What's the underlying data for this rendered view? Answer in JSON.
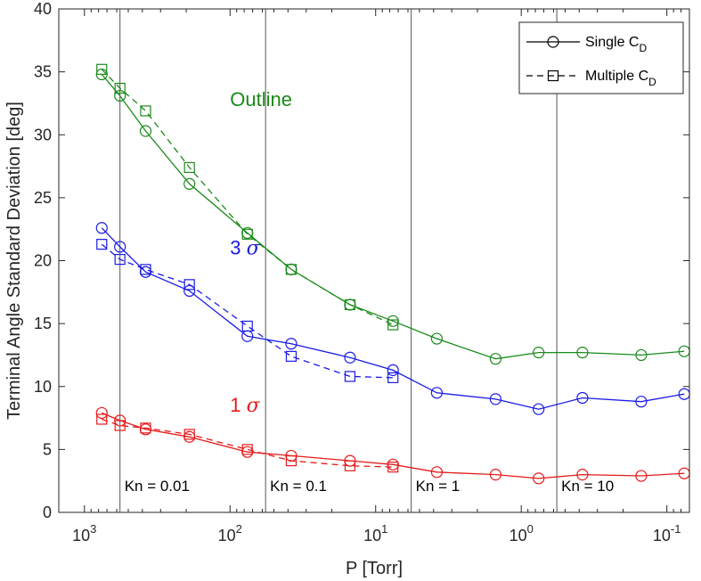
{
  "chart_data": {
    "type": "line",
    "xscale": "log",
    "xdir": "reversed",
    "xlim": [
      1500,
      0.07
    ],
    "ylim": [
      0,
      40
    ],
    "xlabel": "P [Torr]",
    "ylabel": "Terminal Angle Standard Deviation [deg]",
    "x_ticks": [
      {
        "value": 1000,
        "base": "10",
        "exp": "3"
      },
      {
        "value": 100,
        "base": "10",
        "exp": "2"
      },
      {
        "value": 10,
        "base": "10",
        "exp": "1"
      },
      {
        "value": 1,
        "base": "10",
        "exp": "0"
      },
      {
        "value": 0.1,
        "base": "10",
        "exp": "-1"
      }
    ],
    "y_ticks": [
      0,
      5,
      10,
      15,
      20,
      25,
      30,
      35,
      40
    ],
    "knudsen_lines": [
      {
        "x": 570,
        "label": "Kn = 0.01"
      },
      {
        "x": 57,
        "label": "Kn = 0.1"
      },
      {
        "x": 5.7,
        "label": "Kn = 1"
      },
      {
        "x": 0.57,
        "label": "Kn = 10"
      }
    ],
    "legend": {
      "placement": "top-right",
      "entries": [
        {
          "base": "Single C",
          "sub": "D",
          "style": "solid",
          "marker": "circle"
        },
        {
          "base": "Multiple C",
          "sub": "D",
          "style": "dashed",
          "marker": "square"
        }
      ]
    },
    "annotations": [
      {
        "id": "outline",
        "text": "Outline",
        "x": 100,
        "y": 32.3,
        "color": "#1a8a1a"
      },
      {
        "id": "three-sigma",
        "text": "3 σ",
        "x": 100,
        "y": 20.5,
        "color": "#1a1ae6"
      },
      {
        "id": "one-sigma",
        "text": "1 σ",
        "x": 100,
        "y": 8.0,
        "color": "#e61a1a"
      }
    ],
    "series": [
      {
        "name": "Outline, Single CD",
        "group": "Outline",
        "style": "solid",
        "marker": "circle",
        "color": "#1a8a1a",
        "x": [
          760,
          570,
          380,
          190,
          76,
          38,
          15,
          7.6,
          3.8,
          1.5,
          0.76,
          0.38,
          0.15,
          0.076
        ],
        "y": [
          34.8,
          33.1,
          30.3,
          26.1,
          22.2,
          19.3,
          16.5,
          15.2,
          13.8,
          12.2,
          12.7,
          12.7,
          12.5,
          12.8
        ]
      },
      {
        "name": "Outline, Multiple CD",
        "group": "Outline",
        "style": "dashed",
        "marker": "square",
        "color": "#1a8a1a",
        "x": [
          760,
          570,
          380,
          190,
          76,
          38,
          15,
          7.6
        ],
        "y": [
          35.2,
          33.7,
          31.9,
          27.4,
          22.1,
          19.3,
          16.5,
          14.9
        ]
      },
      {
        "name": "3 sigma, Single CD",
        "group": "3 sigma",
        "style": "solid",
        "marker": "circle",
        "color": "#1a1ae6",
        "x": [
          760,
          570,
          380,
          190,
          76,
          38,
          15,
          7.6,
          3.8,
          1.5,
          0.76,
          0.38,
          0.15,
          0.076
        ],
        "y": [
          22.6,
          21.1,
          19.1,
          17.6,
          14.0,
          13.4,
          12.3,
          11.3,
          9.5,
          9.0,
          8.2,
          9.1,
          8.8,
          9.4
        ]
      },
      {
        "name": "3 sigma, Multiple CD",
        "group": "3 sigma",
        "style": "dashed",
        "marker": "square",
        "color": "#1a1ae6",
        "x": [
          760,
          570,
          380,
          190,
          76,
          38,
          15,
          7.6
        ],
        "y": [
          21.3,
          20.1,
          19.3,
          18.1,
          14.8,
          12.4,
          10.8,
          10.7
        ]
      },
      {
        "name": "1 sigma, Single CD",
        "group": "1 sigma",
        "style": "solid",
        "marker": "circle",
        "color": "#e61a1a",
        "x": [
          760,
          570,
          380,
          190,
          76,
          38,
          15,
          7.6,
          3.8,
          1.5,
          0.76,
          0.38,
          0.15,
          0.076
        ],
        "y": [
          7.9,
          7.3,
          6.6,
          6.0,
          4.8,
          4.5,
          4.1,
          3.8,
          3.2,
          3.0,
          2.7,
          3.0,
          2.9,
          3.1
        ]
      },
      {
        "name": "1 sigma, Multiple CD",
        "group": "1 sigma",
        "style": "dashed",
        "marker": "square",
        "color": "#e61a1a",
        "x": [
          760,
          570,
          380,
          190,
          76,
          38,
          15,
          7.6
        ],
        "y": [
          7.4,
          6.9,
          6.7,
          6.2,
          5.0,
          4.1,
          3.7,
          3.6
        ]
      }
    ]
  }
}
